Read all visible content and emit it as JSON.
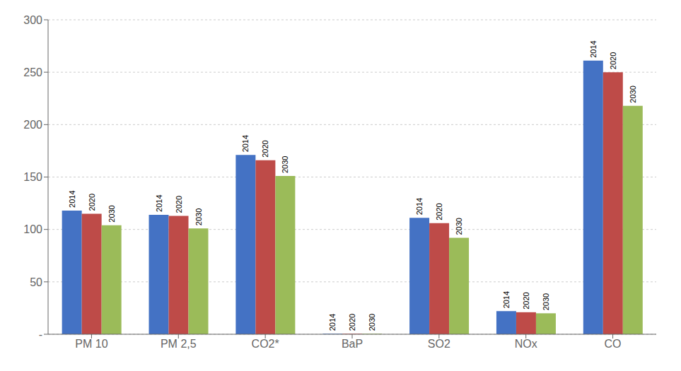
{
  "chart_data": {
    "type": "bar",
    "categories": [
      "PM 10",
      "PM 2,5",
      "CO2*",
      "BaP",
      "SO2",
      "NOx",
      "CO"
    ],
    "series": [
      {
        "name": "2014",
        "color": "#4472C4",
        "values": [
          118,
          114,
          171,
          0.5,
          111,
          22,
          261
        ]
      },
      {
        "name": "2020",
        "color": "#BE4B48",
        "values": [
          115,
          113,
          166,
          0.5,
          106,
          21,
          250
        ]
      },
      {
        "name": "2030",
        "color": "#9BBB59",
        "values": [
          104,
          101,
          151,
          0.5,
          92,
          20,
          218
        ]
      }
    ],
    "ylim": [
      0,
      300
    ],
    "yticks": [
      {
        "value": 0,
        "label": "-"
      },
      50,
      100,
      150,
      200,
      250,
      300
    ],
    "grid": true
  }
}
